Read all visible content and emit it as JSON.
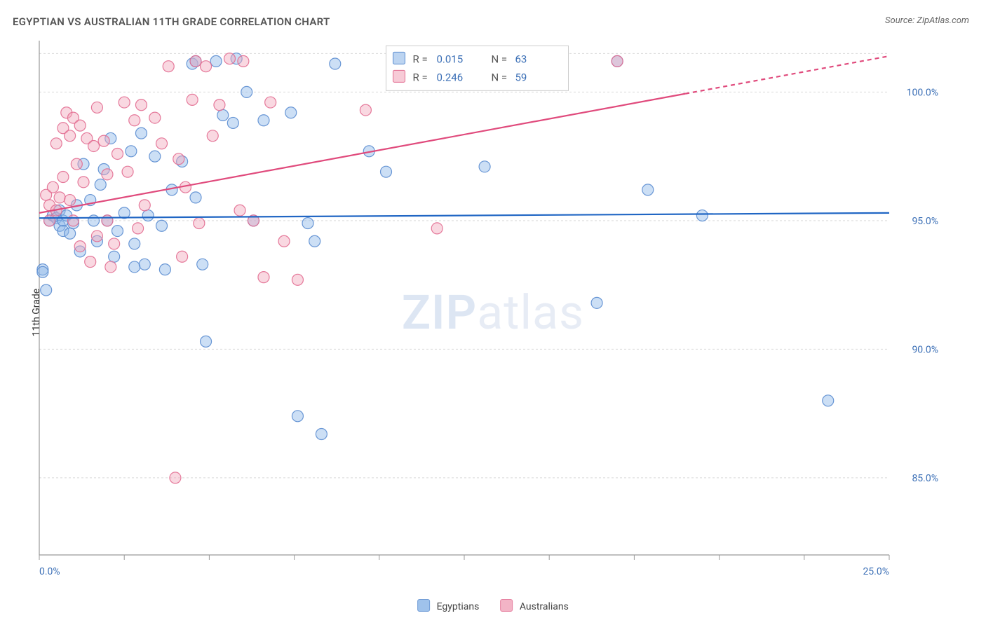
{
  "title": "EGYPTIAN VS AUSTRALIAN 11TH GRADE CORRELATION CHART",
  "source": "Source: ZipAtlas.com",
  "watermark": {
    "part1": "ZIP",
    "part2": "atlas"
  },
  "chart": {
    "type": "scatter",
    "ylabel": "11th Grade",
    "background_color": "#ffffff",
    "grid_color": "#d9d9d9",
    "grid_dash": "3,3",
    "axis_color": "#999999",
    "tick_label_color": "#3b6fb6",
    "tick_fontsize": 14,
    "xlim": [
      0,
      25
    ],
    "ylim": [
      82,
      102
    ],
    "xticks": [
      0,
      2.5,
      5,
      7.5,
      10,
      12.5,
      15,
      17.5,
      20,
      22.5,
      25
    ],
    "xtick_labels": {
      "0": "0.0%",
      "25": "25.0%"
    },
    "yticks": [
      85,
      90,
      95,
      100
    ],
    "ytick_labels": {
      "85": "85.0%",
      "90": "90.0%",
      "95": "95.0%",
      "100": "100.0%"
    },
    "marker_radius": 8,
    "marker_opacity": 0.45,
    "marker_stroke_opacity": 0.9,
    "trend_line_width": 2.2,
    "stats_box": {
      "x": 10.2,
      "y_top": 101.8,
      "bg": "#ffffff",
      "border": "#cccccc",
      "label_color": "#555555",
      "value_color": "#3b6fb6",
      "fontsize": 15,
      "rows": [
        {
          "swatch": 0,
          "R_label": "R =",
          "R": "0.015",
          "N_label": "N =",
          "N": "63"
        },
        {
          "swatch": 1,
          "R_label": "R =",
          "R": "0.246",
          "N_label": "N =",
          "N": "59"
        }
      ]
    },
    "series": [
      {
        "name": "Egyptians",
        "fill": "#8fb8e8",
        "stroke": "#5a8cd0",
        "trend_color": "#2066c4",
        "trend": {
          "x0": 0,
          "y0": 95.1,
          "x1": 25,
          "y1": 95.3,
          "dashed_from_x": null
        },
        "points": [
          [
            0.1,
            93.1
          ],
          [
            0.1,
            93.0
          ],
          [
            0.2,
            92.3
          ],
          [
            0.3,
            95.0
          ],
          [
            0.4,
            95.2
          ],
          [
            0.5,
            95.1
          ],
          [
            0.6,
            94.8
          ],
          [
            0.6,
            95.4
          ],
          [
            0.7,
            95.0
          ],
          [
            0.7,
            94.6
          ],
          [
            0.8,
            95.2
          ],
          [
            0.9,
            94.5
          ],
          [
            1.0,
            94.9
          ],
          [
            1.1,
            95.6
          ],
          [
            1.2,
            93.8
          ],
          [
            1.3,
            97.2
          ],
          [
            1.5,
            95.8
          ],
          [
            1.6,
            95.0
          ],
          [
            1.7,
            94.2
          ],
          [
            1.8,
            96.4
          ],
          [
            1.9,
            97.0
          ],
          [
            2.0,
            95.0
          ],
          [
            2.1,
            98.2
          ],
          [
            2.2,
            93.6
          ],
          [
            2.3,
            94.6
          ],
          [
            2.5,
            95.3
          ],
          [
            2.7,
            97.7
          ],
          [
            2.8,
            94.1
          ],
          [
            2.8,
            93.2
          ],
          [
            3.0,
            98.4
          ],
          [
            3.1,
            93.3
          ],
          [
            3.2,
            95.2
          ],
          [
            3.4,
            97.5
          ],
          [
            3.6,
            94.8
          ],
          [
            3.7,
            93.1
          ],
          [
            3.9,
            96.2
          ],
          [
            4.2,
            97.3
          ],
          [
            4.5,
            101.1
          ],
          [
            4.6,
            101.2
          ],
          [
            4.6,
            95.9
          ],
          [
            4.8,
            93.3
          ],
          [
            4.9,
            90.3
          ],
          [
            5.2,
            101.2
          ],
          [
            5.4,
            99.1
          ],
          [
            5.7,
            98.8
          ],
          [
            5.8,
            101.3
          ],
          [
            6.1,
            100.0
          ],
          [
            6.3,
            95.0
          ],
          [
            6.6,
            98.9
          ],
          [
            7.4,
            99.2
          ],
          [
            7.6,
            87.4
          ],
          [
            7.9,
            94.9
          ],
          [
            8.1,
            94.2
          ],
          [
            8.3,
            86.7
          ],
          [
            8.7,
            101.1
          ],
          [
            9.7,
            97.7
          ],
          [
            10.2,
            96.9
          ],
          [
            13.1,
            97.1
          ],
          [
            16.4,
            91.8
          ],
          [
            17.9,
            96.2
          ],
          [
            19.5,
            95.2
          ],
          [
            23.2,
            88.0
          ],
          [
            17.0,
            101.2
          ]
        ]
      },
      {
        "name": "Australians",
        "fill": "#f2a8bd",
        "stroke": "#e26b90",
        "trend_color": "#e04a7c",
        "trend": {
          "x0": 0,
          "y0": 95.3,
          "x1": 25,
          "y1": 101.4,
          "dashed_from_x": 19.0
        },
        "points": [
          [
            0.2,
            96.0
          ],
          [
            0.3,
            95.0
          ],
          [
            0.3,
            95.6
          ],
          [
            0.4,
            96.3
          ],
          [
            0.5,
            95.4
          ],
          [
            0.5,
            98.0
          ],
          [
            0.6,
            95.9
          ],
          [
            0.7,
            98.6
          ],
          [
            0.7,
            96.7
          ],
          [
            0.8,
            99.2
          ],
          [
            0.9,
            98.3
          ],
          [
            0.9,
            95.8
          ],
          [
            1.0,
            95.0
          ],
          [
            1.0,
            99.0
          ],
          [
            1.1,
            97.2
          ],
          [
            1.2,
            98.7
          ],
          [
            1.2,
            94.0
          ],
          [
            1.3,
            96.5
          ],
          [
            1.4,
            98.2
          ],
          [
            1.5,
            93.4
          ],
          [
            1.6,
            97.9
          ],
          [
            1.7,
            94.4
          ],
          [
            1.7,
            99.4
          ],
          [
            1.9,
            98.1
          ],
          [
            2.0,
            95.0
          ],
          [
            2.0,
            96.8
          ],
          [
            2.1,
            93.2
          ],
          [
            2.2,
            94.1
          ],
          [
            2.3,
            97.6
          ],
          [
            2.5,
            99.6
          ],
          [
            2.6,
            96.9
          ],
          [
            2.8,
            98.9
          ],
          [
            2.9,
            94.7
          ],
          [
            3.0,
            99.5
          ],
          [
            3.1,
            95.6
          ],
          [
            3.4,
            99.0
          ],
          [
            3.6,
            98.0
          ],
          [
            3.8,
            101.0
          ],
          [
            4.0,
            85.0
          ],
          [
            4.1,
            97.4
          ],
          [
            4.2,
            93.6
          ],
          [
            4.3,
            96.3
          ],
          [
            4.5,
            99.7
          ],
          [
            4.6,
            101.2
          ],
          [
            4.7,
            94.9
          ],
          [
            4.9,
            101.0
          ],
          [
            5.1,
            98.3
          ],
          [
            5.3,
            99.5
          ],
          [
            5.6,
            101.3
          ],
          [
            5.9,
            95.4
          ],
          [
            6.0,
            101.2
          ],
          [
            6.3,
            95.0
          ],
          [
            6.6,
            92.8
          ],
          [
            6.8,
            99.6
          ],
          [
            7.2,
            94.2
          ],
          [
            7.6,
            92.7
          ],
          [
            9.6,
            99.3
          ],
          [
            11.7,
            94.7
          ],
          [
            17.0,
            101.2
          ]
        ]
      }
    ]
  }
}
